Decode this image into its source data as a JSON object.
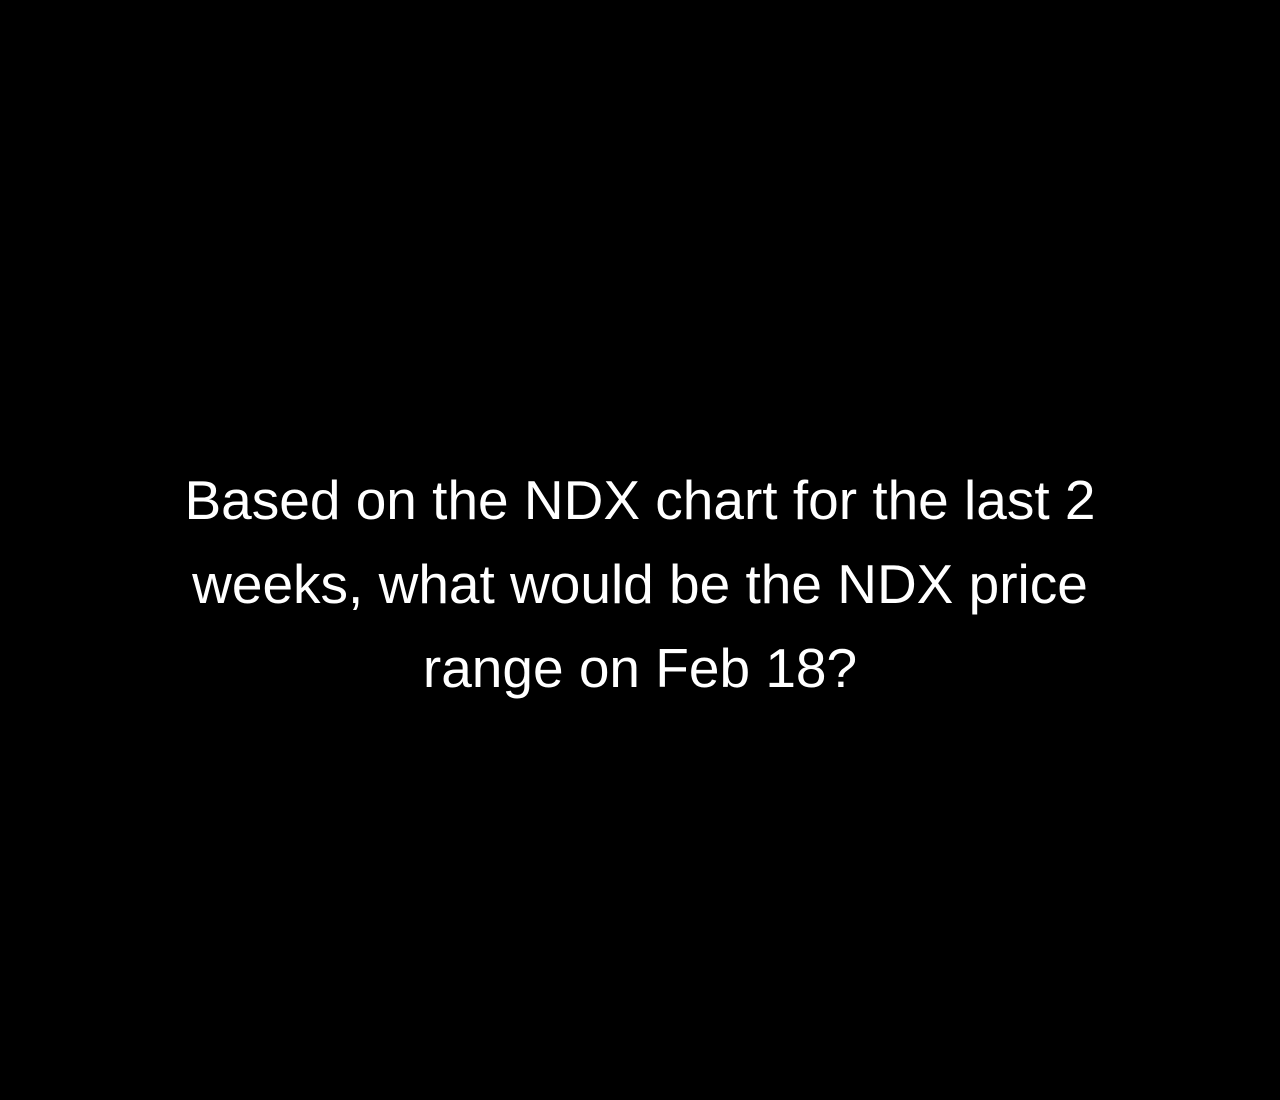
{
  "question": {
    "lines": [
      "Based on the NDX chart for the last 2",
      "weeks, what would be the NDX price",
      "range on Feb 18?"
    ]
  },
  "colors": {
    "background": "#000000",
    "text": "#ffffff"
  }
}
